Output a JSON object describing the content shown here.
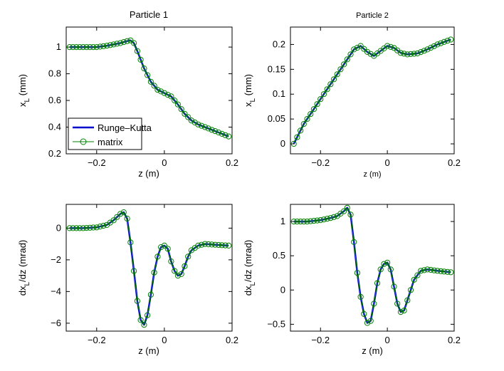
{
  "chart_data": [
    {
      "type": "line",
      "title": "Particle 1",
      "xlabel": "z (m)",
      "ylabel_main": "x",
      "ylabel_sub": "L",
      "ylabel_tail": " (mm)",
      "xlim": [
        -0.29,
        0.2
      ],
      "ylim": [
        0.2,
        1.15
      ],
      "xticks": [
        -0.2,
        0,
        0.2
      ],
      "xtick_labels": [
        "−0.2",
        "0",
        "0.2"
      ],
      "yticks": [
        0.2,
        0.4,
        0.6,
        0.8,
        1.0
      ],
      "ytick_labels": [
        "0.2",
        "0.4",
        "0.6",
        "0.8",
        "1"
      ],
      "legend": {
        "position": "lower-left",
        "entries": [
          "Runge–Kutta",
          "matrix"
        ]
      },
      "series": [
        {
          "name": "Runge–Kutta",
          "color": "#0000cc",
          "x": [
            -0.28,
            -0.24,
            -0.2,
            -0.17,
            -0.15,
            -0.13,
            -0.11,
            -0.1,
            -0.09,
            -0.08,
            -0.06,
            -0.04,
            -0.02,
            0.0,
            0.02,
            0.04,
            0.06,
            0.08,
            0.1,
            0.13,
            0.16,
            0.19
          ],
          "y": [
            1.0,
            1.0,
            1.0,
            1.01,
            1.02,
            1.03,
            1.045,
            1.05,
            1.03,
            0.97,
            0.84,
            0.74,
            0.68,
            0.655,
            0.63,
            0.57,
            0.5,
            0.45,
            0.42,
            0.39,
            0.36,
            0.33
          ]
        },
        {
          "name": "matrix",
          "color": "#008000",
          "x": [
            -0.28,
            -0.24,
            -0.2,
            -0.17,
            -0.15,
            -0.13,
            -0.11,
            -0.1,
            -0.09,
            -0.08,
            -0.06,
            -0.04,
            -0.02,
            0.0,
            0.02,
            0.04,
            0.06,
            0.08,
            0.1,
            0.13,
            0.16,
            0.19
          ],
          "y": [
            1.0,
            1.0,
            1.0,
            1.01,
            1.02,
            1.03,
            1.045,
            1.05,
            1.03,
            0.97,
            0.84,
            0.74,
            0.68,
            0.655,
            0.63,
            0.57,
            0.5,
            0.45,
            0.42,
            0.39,
            0.36,
            0.33
          ]
        }
      ]
    },
    {
      "type": "line",
      "title": "Particle 2",
      "xlabel": "z (m)",
      "ylabel_main": "x",
      "ylabel_sub": "L",
      "ylabel_tail": " (mm)",
      "xlim": [
        -0.29,
        0.2
      ],
      "ylim": [
        -0.02,
        0.235
      ],
      "xticks": [
        -0.2,
        0,
        0.2
      ],
      "xtick_labels": [
        "−0.2",
        "0",
        "0.2"
      ],
      "yticks": [
        0,
        0.05,
        0.1,
        0.15,
        0.2
      ],
      "ytick_labels": [
        "0",
        "0.05",
        "0.1",
        "0.15",
        "0.2"
      ],
      "series": [
        {
          "name": "Runge–Kutta",
          "color": "#0000cc",
          "x": [
            -0.28,
            -0.25,
            -0.22,
            -0.19,
            -0.16,
            -0.13,
            -0.1,
            -0.08,
            -0.06,
            -0.04,
            -0.02,
            0.0,
            0.02,
            0.04,
            0.06,
            0.09,
            0.12,
            0.15,
            0.19
          ],
          "y": [
            0.0,
            0.04,
            0.07,
            0.1,
            0.13,
            0.16,
            0.19,
            0.197,
            0.185,
            0.177,
            0.187,
            0.197,
            0.193,
            0.183,
            0.18,
            0.182,
            0.19,
            0.2,
            0.21
          ]
        },
        {
          "name": "matrix",
          "color": "#008000",
          "x": [
            -0.28,
            -0.25,
            -0.22,
            -0.19,
            -0.16,
            -0.13,
            -0.1,
            -0.08,
            -0.06,
            -0.04,
            -0.02,
            0.0,
            0.02,
            0.04,
            0.06,
            0.09,
            0.12,
            0.15,
            0.19
          ],
          "y": [
            0.0,
            0.04,
            0.07,
            0.1,
            0.13,
            0.16,
            0.19,
            0.197,
            0.185,
            0.177,
            0.187,
            0.197,
            0.193,
            0.183,
            0.18,
            0.182,
            0.19,
            0.2,
            0.21
          ]
        }
      ]
    },
    {
      "type": "line",
      "title": "",
      "xlabel": "z (m)",
      "ylabel_main": "dx",
      "ylabel_sub": "L",
      "ylabel_tail": "/dz (mrad)",
      "xlim": [
        -0.29,
        0.2
      ],
      "ylim": [
        -6.5,
        1.5
      ],
      "xticks": [
        -0.2,
        0,
        0.2
      ],
      "xtick_labels": [
        "−0.2",
        "0",
        "0.2"
      ],
      "yticks": [
        -6,
        -4,
        -2,
        0
      ],
      "ytick_labels": [
        "−6",
        "−4",
        "−2",
        "0"
      ],
      "series": [
        {
          "name": "Runge–Kutta",
          "color": "#0000cc",
          "x": [
            -0.28,
            -0.24,
            -0.2,
            -0.17,
            -0.15,
            -0.13,
            -0.12,
            -0.11,
            -0.1,
            -0.09,
            -0.08,
            -0.07,
            -0.06,
            -0.05,
            -0.04,
            -0.03,
            -0.02,
            -0.01,
            0.0,
            0.01,
            0.02,
            0.03,
            0.04,
            0.05,
            0.06,
            0.07,
            0.08,
            0.1,
            0.12,
            0.15,
            0.19
          ],
          "y": [
            0.0,
            0.0,
            0.05,
            0.2,
            0.5,
            0.9,
            1.0,
            0.6,
            -0.9,
            -2.7,
            -4.6,
            -5.8,
            -6.1,
            -5.5,
            -4.2,
            -2.8,
            -1.8,
            -1.2,
            -1.1,
            -1.3,
            -2.1,
            -2.7,
            -3.0,
            -2.9,
            -2.4,
            -1.8,
            -1.4,
            -1.1,
            -1.0,
            -1.05,
            -1.1
          ]
        },
        {
          "name": "matrix",
          "color": "#008000",
          "x": [
            -0.28,
            -0.24,
            -0.2,
            -0.17,
            -0.15,
            -0.13,
            -0.12,
            -0.11,
            -0.1,
            -0.09,
            -0.08,
            -0.07,
            -0.06,
            -0.05,
            -0.04,
            -0.03,
            -0.02,
            -0.01,
            0.0,
            0.01,
            0.02,
            0.03,
            0.04,
            0.05,
            0.06,
            0.07,
            0.08,
            0.1,
            0.12,
            0.15,
            0.19
          ],
          "y": [
            0.0,
            0.0,
            0.05,
            0.2,
            0.5,
            0.9,
            1.0,
            0.6,
            -0.9,
            -2.7,
            -4.6,
            -5.8,
            -6.1,
            -5.5,
            -4.2,
            -2.8,
            -1.8,
            -1.2,
            -1.1,
            -1.3,
            -2.1,
            -2.7,
            -3.0,
            -2.9,
            -2.4,
            -1.8,
            -1.4,
            -1.1,
            -1.0,
            -1.05,
            -1.1
          ]
        }
      ]
    },
    {
      "type": "line",
      "title": "",
      "xlabel": "z (m)",
      "ylabel_main": "dx",
      "ylabel_sub": "L",
      "ylabel_tail": "/dz (mrad)",
      "xlim": [
        -0.29,
        0.2
      ],
      "ylim": [
        -0.6,
        1.25
      ],
      "xticks": [
        -0.2,
        0,
        0.2
      ],
      "xtick_labels": [
        "−0.2",
        "0",
        "0.2"
      ],
      "yticks": [
        -0.5,
        0,
        0.5,
        1.0
      ],
      "ytick_labels": [
        "−0.5",
        "0",
        "0.5",
        "1"
      ],
      "series": [
        {
          "name": "Runge–Kutta",
          "color": "#0000cc",
          "x": [
            -0.28,
            -0.24,
            -0.2,
            -0.17,
            -0.15,
            -0.13,
            -0.12,
            -0.11,
            -0.1,
            -0.09,
            -0.08,
            -0.07,
            -0.06,
            -0.05,
            -0.04,
            -0.03,
            -0.02,
            -0.01,
            0.0,
            0.01,
            0.02,
            0.03,
            0.04,
            0.05,
            0.06,
            0.07,
            0.08,
            0.1,
            0.12,
            0.15,
            0.19
          ],
          "y": [
            1.0,
            1.0,
            1.02,
            1.05,
            1.08,
            1.15,
            1.2,
            1.1,
            0.7,
            0.25,
            -0.1,
            -0.35,
            -0.48,
            -0.45,
            -0.2,
            0.1,
            0.3,
            0.38,
            0.4,
            0.3,
            0.05,
            -0.2,
            -0.32,
            -0.3,
            -0.15,
            0.0,
            0.15,
            0.28,
            0.3,
            0.28,
            0.26
          ]
        },
        {
          "name": "matrix",
          "color": "#008000",
          "x": [
            -0.28,
            -0.24,
            -0.2,
            -0.17,
            -0.15,
            -0.13,
            -0.12,
            -0.11,
            -0.1,
            -0.09,
            -0.08,
            -0.07,
            -0.06,
            -0.05,
            -0.04,
            -0.03,
            -0.02,
            -0.01,
            0.0,
            0.01,
            0.02,
            0.03,
            0.04,
            0.05,
            0.06,
            0.07,
            0.08,
            0.1,
            0.12,
            0.15,
            0.19
          ],
          "y": [
            1.0,
            1.0,
            1.02,
            1.05,
            1.08,
            1.15,
            1.2,
            1.1,
            0.7,
            0.25,
            -0.1,
            -0.35,
            -0.48,
            -0.45,
            -0.2,
            0.1,
            0.3,
            0.38,
            0.4,
            0.3,
            0.05,
            -0.2,
            -0.32,
            -0.3,
            -0.15,
            0.0,
            0.15,
            0.28,
            0.3,
            0.28,
            0.26
          ]
        }
      ]
    }
  ]
}
